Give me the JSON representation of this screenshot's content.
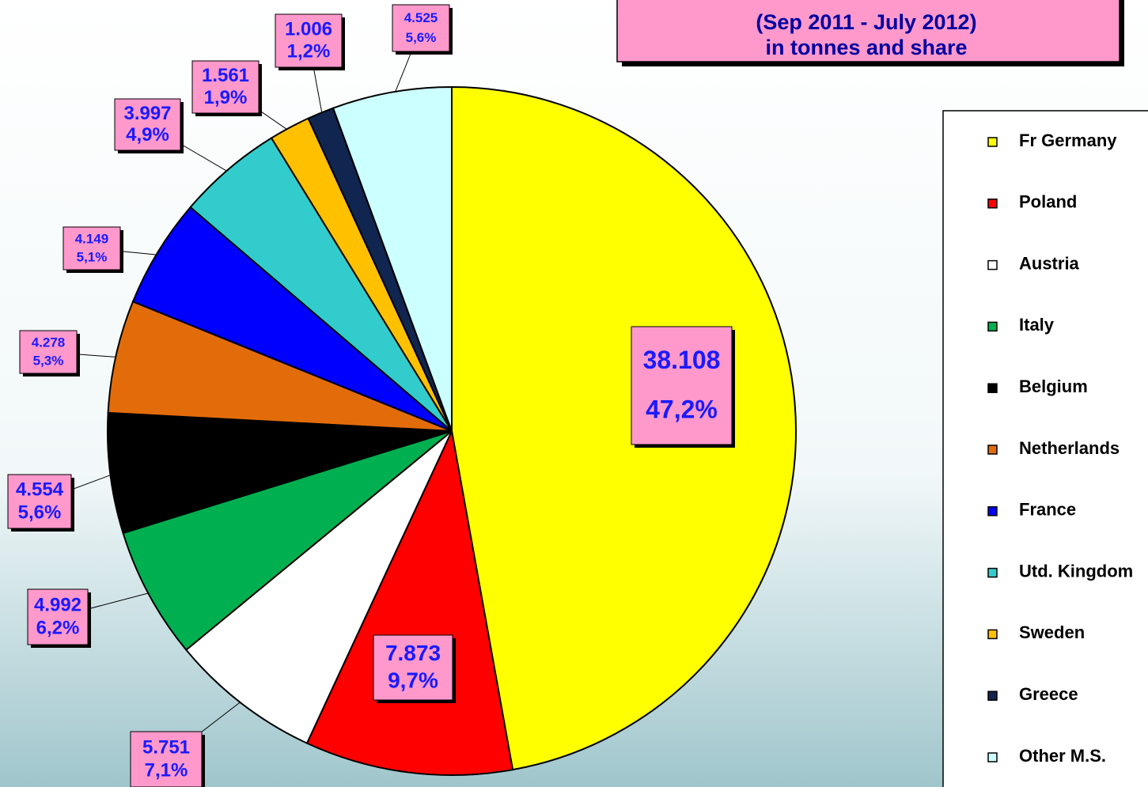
{
  "chart_data": {
    "type": "pie",
    "title_lines": [
      "(Sep 2011 - July 2012)",
      "in tonnes and share"
    ],
    "categories": [
      "Fr Germany",
      "Poland",
      "Austria",
      "Italy",
      "Belgium",
      "Netherlands",
      "France",
      "Utd. Kingdom",
      "Sweden",
      "Greece",
      "Other M.S."
    ],
    "values": [
      38108,
      7873,
      5751,
      4992,
      4554,
      4278,
      4149,
      3997,
      1561,
      1006,
      4525
    ],
    "value_labels": [
      "38.108",
      "7.873",
      "5.751",
      "4.992",
      "4.554",
      "4.278",
      "4.149",
      "3.997",
      "1.561",
      "1.006",
      "4.525"
    ],
    "shares": [
      47.2,
      9.7,
      7.1,
      6.2,
      5.6,
      5.3,
      5.1,
      4.9,
      1.9,
      1.2,
      5.6
    ],
    "share_labels": [
      "47,2%",
      "9,7%",
      "7,1%",
      "6,2%",
      "5,6%",
      "5,3%",
      "5,1%",
      "4,9%",
      "1,9%",
      "1,2%",
      "5,6%"
    ],
    "colors": [
      "#ffff00",
      "#ff0000",
      "#ffffff",
      "#00b050",
      "#000000",
      "#e36c0a",
      "#0000ff",
      "#33cccc",
      "#ffc000",
      "#10254f",
      "#ccffff"
    ],
    "legend": "right"
  }
}
